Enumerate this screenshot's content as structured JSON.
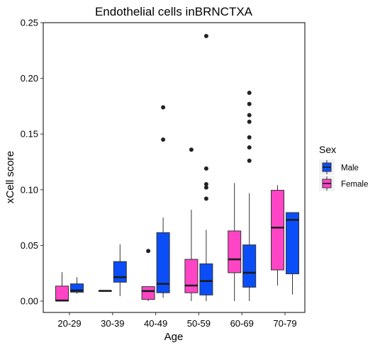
{
  "chart_data": {
    "type": "boxplot",
    "title": "Endothelial cells inBRNCTXA",
    "xlabel": "Age",
    "ylabel": "xCell score",
    "ylim": [
      -0.012,
      0.25
    ],
    "yticks": [
      0.0,
      0.05,
      0.1,
      0.15,
      0.2,
      0.25
    ],
    "ytick_labels": [
      "0.00",
      "0.05",
      "0.10",
      "0.15",
      "0.20",
      "0.25"
    ],
    "categories": [
      "20-29",
      "30-39",
      "40-49",
      "50-59",
      "60-69",
      "70-79"
    ],
    "grid": false,
    "legend": {
      "title": "Sex",
      "position": "right",
      "entries": [
        {
          "label": "Male",
          "color": "#0b4ef7"
        },
        {
          "label": "Female",
          "color": "#ff44c6"
        }
      ]
    },
    "series": [
      {
        "name": "Female",
        "color": "#ff44c6",
        "boxes": [
          {
            "category": "20-29",
            "min": 0.0,
            "q1": 0.0,
            "median": 0.0005,
            "q3": 0.0135,
            "max": 0.026,
            "outliers": []
          },
          {
            "category": "30-39",
            "min": 0.0092,
            "q1": 0.0092,
            "median": 0.0092,
            "q3": 0.0092,
            "max": 0.0092,
            "outliers": []
          },
          {
            "category": "40-49",
            "min": 0.0,
            "q1": 0.0015,
            "median": 0.009,
            "q3": 0.013,
            "max": 0.013,
            "outliers": [
              0.045
            ]
          },
          {
            "category": "50-59",
            "min": 0.0,
            "q1": 0.0075,
            "median": 0.014,
            "q3": 0.0375,
            "max": 0.082,
            "outliers": [
              0.136
            ]
          },
          {
            "category": "60-69",
            "min": 0.0,
            "q1": 0.0255,
            "median": 0.0375,
            "q3": 0.063,
            "max": 0.106,
            "outliers": []
          },
          {
            "category": "70-79",
            "min": 0.014,
            "q1": 0.028,
            "median": 0.066,
            "q3": 0.0995,
            "max": 0.104,
            "outliers": []
          }
        ]
      },
      {
        "name": "Male",
        "color": "#0b4ef7",
        "boxes": [
          {
            "category": "20-29",
            "min": 0.0065,
            "q1": 0.008,
            "median": 0.0095,
            "q3": 0.0155,
            "max": 0.0215,
            "outliers": []
          },
          {
            "category": "30-39",
            "min": 0.0045,
            "q1": 0.017,
            "median": 0.0215,
            "q3": 0.0355,
            "max": 0.051,
            "outliers": []
          },
          {
            "category": "40-49",
            "min": 0.003,
            "q1": 0.0075,
            "median": 0.0155,
            "q3": 0.0615,
            "max": 0.075,
            "outliers": [
              0.145,
              0.174
            ]
          },
          {
            "category": "50-59",
            "min": 0.0,
            "q1": 0.0055,
            "median": 0.018,
            "q3": 0.0335,
            "max": 0.064,
            "outliers": [
              0.092,
              0.102,
              0.105,
              0.119,
              0.238
            ]
          },
          {
            "category": "60-69",
            "min": 0.0,
            "q1": 0.0125,
            "median": 0.0255,
            "q3": 0.0505,
            "max": 0.097,
            "outliers": [
              0.126,
              0.138,
              0.147,
              0.161,
              0.167,
              0.177,
              0.187
            ]
          },
          {
            "category": "70-79",
            "min": 0.006,
            "q1": 0.0245,
            "median": 0.073,
            "q3": 0.0795,
            "max": 0.0795,
            "outliers": []
          }
        ]
      }
    ]
  }
}
